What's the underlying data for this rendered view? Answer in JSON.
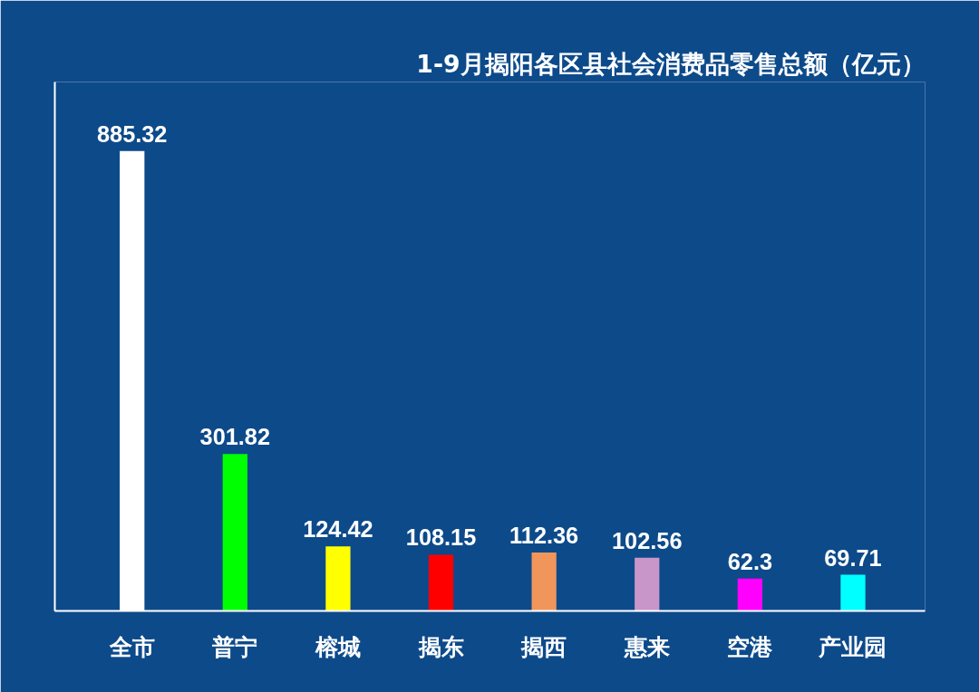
{
  "chart_data": {
    "type": "bar",
    "title": "1-9月揭阳各区县社会消费品零售总额（亿元）",
    "categories": [
      "全市",
      "普宁",
      "榕城",
      "揭东",
      "揭西",
      "惠来",
      "空港",
      "产业园"
    ],
    "values": [
      885.32,
      301.82,
      124.42,
      108.15,
      112.36,
      102.56,
      62.3,
      69.71
    ],
    "colors": [
      "#ffffff",
      "#00ff00",
      "#ffff00",
      "#ff0000",
      "#f0965a",
      "#c896c8",
      "#ff00ff",
      "#00ffff"
    ],
    "data_labels": true,
    "grid": false
  }
}
